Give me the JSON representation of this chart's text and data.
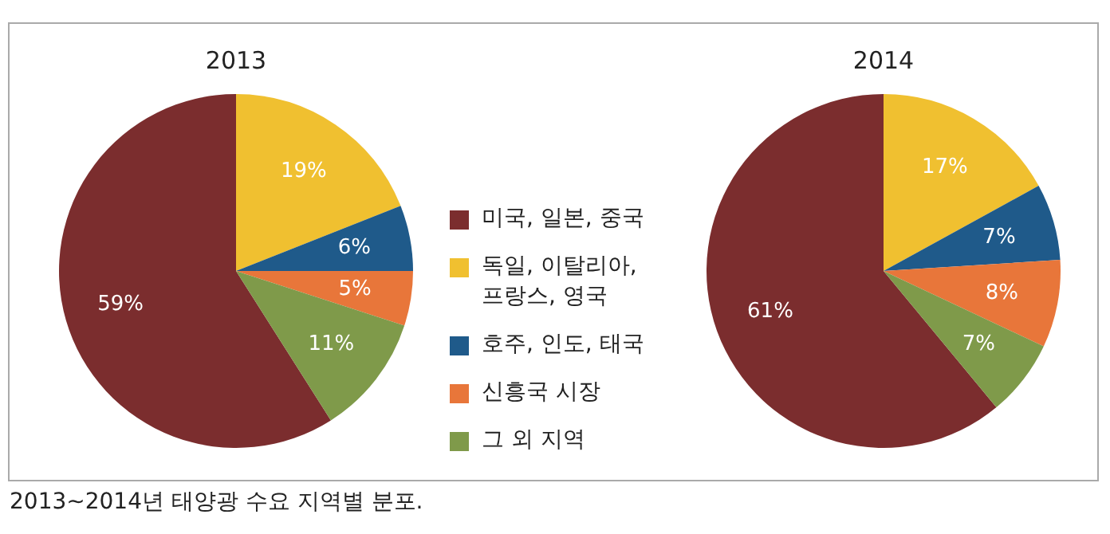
{
  "chart_data": [
    {
      "type": "pie",
      "title": "2013",
      "categories": [
        "미국, 일본, 중국",
        "독일, 이탈리아, 프랑스, 영국",
        "호주, 인도, 태국",
        "신흥국 시장",
        "그 외 지역"
      ],
      "values": [
        59,
        19,
        6,
        5,
        11
      ],
      "value_labels": [
        "59%",
        "19%",
        "6%",
        "5%",
        "11%"
      ],
      "colors": [
        "#7b2d2e",
        "#f0c030",
        "#1f5a8a",
        "#e8763a",
        "#7f9a4a"
      ],
      "legend": "right"
    },
    {
      "type": "pie",
      "title": "2014",
      "categories": [
        null,
        null,
        null,
        null,
        null
      ],
      "values": [
        61,
        17,
        7,
        8,
        7
      ],
      "value_labels": [
        "61%",
        "17%",
        "7%",
        "8%",
        "7%"
      ],
      "colors": [
        "#7b2d2e",
        "#f0c030",
        "#1f5a8a",
        "#e8763a",
        "#7f9a4a"
      ],
      "annotations": [
        "2013~2014년 태양광 수요 지역별 분포."
      ]
    }
  ]
}
